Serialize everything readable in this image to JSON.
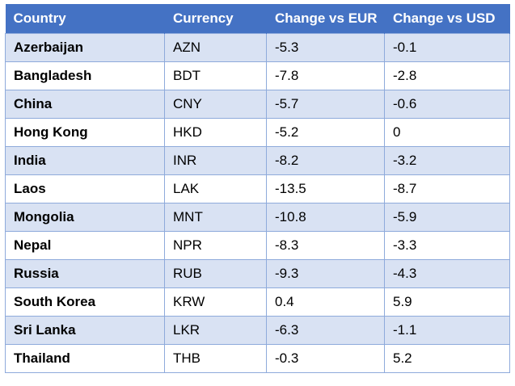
{
  "table": {
    "headers": [
      "Country",
      "Currency",
      "Change vs EUR",
      "Change vs USD"
    ],
    "rows": [
      [
        "Azerbaijan",
        "AZN",
        "-5.3",
        "-0.1"
      ],
      [
        "Bangladesh",
        "BDT",
        "-7.8",
        "-2.8"
      ],
      [
        "China",
        "CNY",
        "-5.7",
        "-0.6"
      ],
      [
        "Hong Kong",
        "HKD",
        "-5.2",
        "0"
      ],
      [
        "India",
        "INR",
        "-8.2",
        "-3.2"
      ],
      [
        "Laos",
        "LAK",
        "-13.5",
        "-8.7"
      ],
      [
        "Mongolia",
        "MNT",
        "-10.8",
        "-5.9"
      ],
      [
        "Nepal",
        "NPR",
        "-8.3",
        "-3.3"
      ],
      [
        "Russia",
        "RUB",
        "-9.3",
        "-4.3"
      ],
      [
        "South Korea",
        "KRW",
        "0.4",
        "5.9"
      ],
      [
        "Sri Lanka",
        "LKR",
        "-6.3",
        "-1.1"
      ],
      [
        "Thailand",
        "THB",
        "-0.3",
        "5.2"
      ]
    ]
  },
  "colors": {
    "header_bg": "#4472c4",
    "band_bg": "#d9e2f3",
    "border": "#8eaadb"
  }
}
